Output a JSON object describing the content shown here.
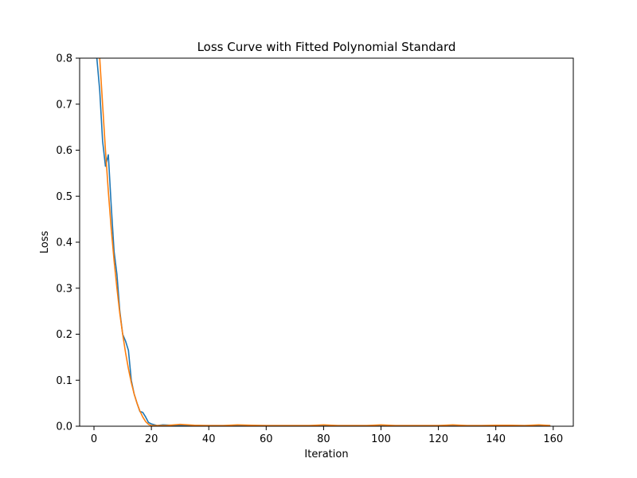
{
  "chart_data": {
    "type": "line",
    "title": "Loss Curve with Fitted Polynomial Standard",
    "xlabel": "Iteration",
    "ylabel": "Loss",
    "xlim": [
      -5,
      167
    ],
    "ylim": [
      0,
      0.8
    ],
    "x_ticks": [
      0,
      20,
      40,
      60,
      80,
      100,
      120,
      140,
      160
    ],
    "y_ticks": [
      0.0,
      0.1,
      0.2,
      0.3,
      0.4,
      0.5,
      0.6,
      0.7,
      0.8
    ],
    "x_tick_labels": [
      "0",
      "20",
      "40",
      "60",
      "80",
      "100",
      "120",
      "140",
      "160"
    ],
    "y_tick_labels": [
      "0.0",
      "0.1",
      "0.2",
      "0.3",
      "0.4",
      "0.5",
      "0.6",
      "0.7",
      "0.8"
    ],
    "grid": false,
    "legend": null,
    "series": [
      {
        "color": "#1f77b4",
        "x": [
          1,
          2,
          3,
          4,
          5,
          6,
          7,
          8,
          9,
          10,
          11,
          12,
          13,
          14,
          15,
          16,
          17,
          18,
          19,
          20,
          22,
          24,
          30,
          40,
          60,
          80,
          100,
          120,
          140,
          159
        ],
        "y": [
          0.8,
          0.73,
          0.62,
          0.565,
          0.59,
          0.48,
          0.38,
          0.33,
          0.25,
          0.2,
          0.185,
          0.165,
          0.1,
          0.07,
          0.05,
          0.032,
          0.03,
          0.02,
          0.008,
          0.005,
          0.001,
          0.003,
          0.001,
          0.001,
          0.0005,
          0.0005,
          0.0005,
          0.0005,
          0.0005,
          0.0005
        ]
      },
      {
        "color": "#ff7f0e",
        "x": [
          2,
          3,
          4,
          5,
          6,
          7,
          8,
          9,
          10,
          11,
          12,
          13,
          14,
          15,
          16,
          17,
          18,
          19,
          20,
          22,
          25,
          30,
          35,
          40,
          45,
          50,
          55,
          60,
          65,
          70,
          75,
          80,
          85,
          90,
          95,
          100,
          105,
          110,
          115,
          120,
          125,
          130,
          135,
          140,
          145,
          150,
          155,
          159
        ],
        "y": [
          0.8,
          0.7,
          0.6,
          0.51,
          0.43,
          0.36,
          0.3,
          0.245,
          0.2,
          0.16,
          0.125,
          0.095,
          0.07,
          0.05,
          0.033,
          0.02,
          0.01,
          0.004,
          0.001,
          0.0,
          0.001,
          0.004,
          0.002,
          0.0,
          0.001,
          0.003,
          0.002,
          0.0,
          0.001,
          0.001,
          0.0,
          0.003,
          0.001,
          0.0,
          0.0,
          0.003,
          0.001,
          0.0,
          0.0,
          0.001,
          0.003,
          0.0,
          0.0,
          0.002,
          0.002,
          0.0,
          0.003,
          0.0
        ]
      }
    ]
  }
}
